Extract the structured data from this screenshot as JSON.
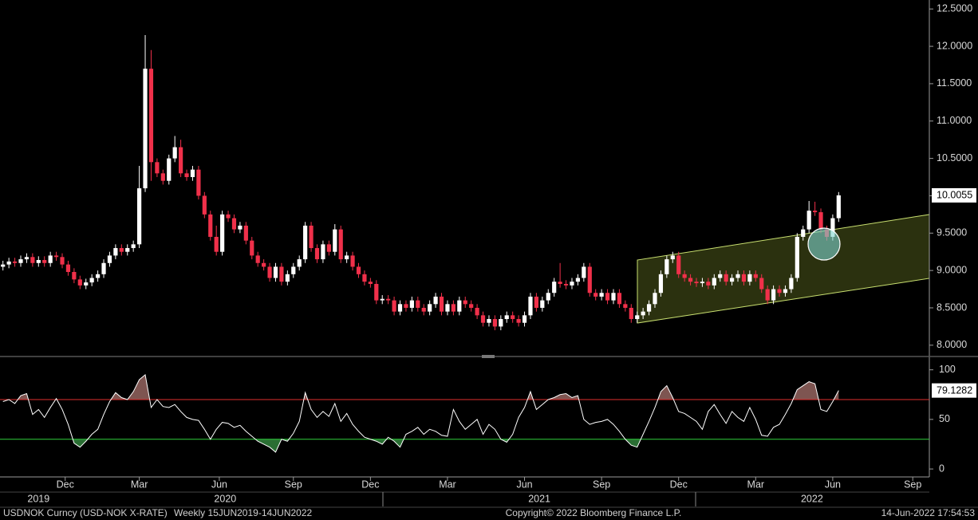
{
  "chart_data": [
    {
      "type": "candlestick",
      "categories": [
        null,
        null,
        null,
        null,
        null,
        null,
        null,
        null,
        null,
        null,
        null,
        null,
        null,
        null,
        null,
        null,
        null,
        null,
        null,
        null,
        null,
        null,
        null,
        null,
        null,
        null,
        null,
        null,
        null,
        null,
        null,
        null,
        null,
        null,
        null,
        null,
        null,
        null,
        null,
        null,
        null,
        null,
        null,
        null,
        null,
        null,
        null,
        null,
        null,
        null,
        null,
        null,
        null,
        null,
        null,
        null,
        null,
        null,
        null,
        null,
        null,
        null,
        null,
        null,
        null,
        null,
        null,
        null,
        null,
        null,
        null,
        null,
        null,
        null,
        null,
        null,
        null,
        null,
        null,
        null,
        null,
        null,
        null,
        null,
        null,
        null,
        null,
        null,
        null,
        null,
        null,
        null,
        null,
        null,
        null,
        null,
        null,
        null,
        null,
        null,
        null,
        null,
        null,
        null,
        null,
        null,
        null,
        null,
        null,
        null,
        null,
        null,
        null,
        null,
        null,
        null,
        null,
        null,
        null,
        null,
        null,
        null,
        null,
        null,
        null,
        null,
        null,
        null,
        null,
        null,
        null,
        null,
        null,
        null,
        null,
        null,
        null,
        null,
        null,
        null,
        null,
        null
      ],
      "open": [
        9.05,
        9.08,
        9.12,
        9.1,
        9.15,
        9.18,
        9.1,
        9.14,
        9.1,
        9.2,
        9.18,
        9.08,
        8.98,
        8.88,
        8.8,
        8.84,
        8.9,
        8.95,
        9.1,
        9.2,
        9.3,
        9.25,
        9.3,
        9.35,
        10.1,
        11.7,
        10.45,
        10.3,
        10.2,
        10.5,
        10.65,
        10.3,
        10.25,
        10.35,
        10.0,
        9.75,
        9.45,
        9.25,
        9.75,
        9.7,
        9.55,
        9.6,
        9.4,
        9.2,
        9.1,
        9.05,
        8.9,
        9.05,
        8.85,
        8.95,
        9.05,
        9.15,
        9.6,
        9.3,
        9.15,
        9.35,
        9.25,
        9.55,
        9.15,
        9.2,
        9.05,
        8.95,
        8.85,
        8.82,
        8.6,
        8.62,
        8.6,
        8.45,
        8.55,
        8.5,
        8.6,
        8.5,
        8.45,
        8.55,
        8.65,
        8.45,
        8.55,
        8.45,
        8.6,
        8.55,
        8.5,
        8.4,
        8.3,
        8.35,
        8.25,
        8.35,
        8.4,
        8.35,
        8.3,
        8.4,
        8.65,
        8.5,
        8.6,
        8.7,
        8.85,
        8.82,
        8.8,
        8.85,
        8.9,
        9.05,
        8.7,
        8.65,
        8.7,
        8.6,
        8.7,
        8.55,
        8.5,
        8.35,
        8.4,
        8.45,
        8.55,
        8.7,
        8.95,
        9.15,
        9.2,
        8.95,
        8.9,
        8.85,
        8.83,
        8.85,
        8.8,
        8.9,
        8.95,
        8.85,
        8.9,
        8.95,
        8.85,
        8.95,
        8.9,
        8.75,
        8.6,
        8.75,
        8.7,
        8.75,
        8.9,
        9.45,
        9.55,
        9.8,
        9.78,
        9.55,
        9.45,
        9.7
      ],
      "high": [
        9.13,
        9.17,
        9.17,
        9.2,
        9.23,
        9.23,
        9.19,
        9.19,
        9.25,
        9.25,
        9.23,
        9.13,
        9.03,
        8.93,
        8.89,
        8.95,
        9.0,
        9.15,
        9.25,
        9.35,
        9.35,
        9.35,
        9.4,
        10.4,
        12.15,
        11.95,
        10.5,
        10.35,
        10.55,
        10.8,
        10.75,
        10.35,
        10.4,
        10.4,
        10.05,
        9.8,
        9.6,
        9.8,
        9.8,
        9.75,
        9.65,
        9.65,
        9.45,
        9.25,
        9.15,
        9.1,
        9.1,
        9.1,
        9.0,
        9.1,
        9.2,
        9.65,
        9.65,
        9.35,
        9.4,
        9.4,
        9.62,
        9.6,
        9.25,
        9.25,
        9.1,
        9.0,
        8.9,
        8.87,
        8.67,
        8.67,
        8.65,
        8.6,
        8.6,
        8.65,
        8.65,
        8.55,
        8.6,
        8.7,
        8.7,
        8.6,
        8.6,
        8.65,
        8.65,
        8.6,
        8.55,
        8.45,
        8.4,
        8.4,
        8.4,
        8.45,
        8.45,
        8.4,
        8.45,
        8.7,
        8.7,
        8.65,
        8.75,
        8.9,
        9.1,
        8.87,
        8.9,
        8.95,
        9.1,
        9.1,
        8.75,
        8.75,
        8.75,
        8.75,
        8.75,
        8.6,
        8.55,
        8.45,
        8.5,
        8.6,
        8.75,
        9.0,
        9.2,
        9.25,
        9.25,
        9.0,
        8.95,
        8.9,
        8.9,
        8.9,
        8.95,
        9.0,
        9.0,
        8.95,
        9.0,
        9.0,
        9.0,
        9.0,
        8.95,
        8.8,
        8.8,
        8.8,
        8.8,
        8.95,
        9.5,
        9.6,
        9.93,
        9.92,
        9.83,
        9.6,
        9.75,
        10.05
      ],
      "low": [
        9.0,
        9.03,
        9.05,
        9.05,
        9.1,
        9.05,
        9.05,
        9.05,
        9.05,
        9.13,
        9.03,
        8.93,
        8.83,
        8.75,
        8.75,
        8.79,
        8.85,
        8.9,
        9.05,
        9.15,
        9.2,
        9.2,
        9.25,
        9.3,
        10.05,
        10.2,
        10.25,
        10.15,
        10.15,
        10.45,
        10.25,
        10.2,
        10.2,
        9.95,
        9.7,
        9.4,
        9.2,
        9.2,
        9.65,
        9.5,
        9.5,
        9.35,
        9.15,
        9.05,
        9.0,
        8.85,
        8.85,
        8.8,
        8.8,
        8.9,
        9.0,
        9.1,
        9.25,
        9.1,
        9.1,
        9.2,
        9.2,
        9.1,
        9.1,
        9.0,
        8.9,
        8.8,
        8.77,
        8.55,
        8.55,
        8.55,
        8.4,
        8.4,
        8.45,
        8.45,
        8.45,
        8.4,
        8.4,
        8.5,
        8.4,
        8.4,
        8.4,
        8.4,
        8.5,
        8.45,
        8.35,
        8.25,
        8.25,
        8.2,
        8.2,
        8.3,
        8.3,
        8.25,
        8.25,
        8.35,
        8.45,
        8.45,
        8.55,
        8.65,
        8.77,
        8.75,
        8.75,
        8.8,
        8.85,
        8.65,
        8.6,
        8.6,
        8.55,
        8.55,
        8.5,
        8.45,
        8.3,
        8.3,
        8.35,
        8.4,
        8.5,
        8.65,
        8.9,
        9.1,
        8.9,
        8.85,
        8.8,
        8.78,
        8.78,
        8.75,
        8.75,
        8.85,
        8.8,
        8.8,
        8.85,
        8.8,
        8.8,
        8.85,
        8.7,
        8.55,
        8.55,
        8.65,
        8.65,
        8.7,
        8.85,
        9.4,
        9.5,
        9.73,
        9.5,
        9.4,
        9.4,
        9.65
      ],
      "close": [
        9.08,
        9.12,
        9.1,
        9.15,
        9.18,
        9.1,
        9.14,
        9.1,
        9.2,
        9.18,
        9.08,
        8.98,
        8.88,
        8.8,
        8.84,
        8.9,
        8.95,
        9.1,
        9.2,
        9.3,
        9.25,
        9.3,
        9.35,
        10.1,
        11.7,
        10.45,
        10.3,
        10.2,
        10.5,
        10.65,
        10.3,
        10.25,
        10.35,
        10.0,
        9.75,
        9.45,
        9.25,
        9.75,
        9.7,
        9.55,
        9.6,
        9.4,
        9.2,
        9.1,
        9.05,
        8.9,
        9.05,
        8.85,
        8.95,
        9.05,
        9.15,
        9.6,
        9.3,
        9.15,
        9.35,
        9.25,
        9.55,
        9.15,
        9.2,
        9.05,
        8.95,
        8.85,
        8.82,
        8.6,
        8.62,
        8.6,
        8.45,
        8.55,
        8.5,
        8.6,
        8.5,
        8.45,
        8.55,
        8.65,
        8.45,
        8.55,
        8.45,
        8.6,
        8.55,
        8.5,
        8.4,
        8.3,
        8.35,
        8.25,
        8.35,
        8.4,
        8.35,
        8.3,
        8.4,
        8.65,
        8.5,
        8.6,
        8.7,
        8.85,
        8.82,
        8.8,
        8.85,
        8.9,
        9.05,
        8.7,
        8.65,
        8.7,
        8.6,
        8.7,
        8.55,
        8.5,
        8.35,
        8.4,
        8.45,
        8.55,
        8.7,
        8.95,
        9.15,
        9.2,
        8.95,
        8.9,
        8.85,
        8.83,
        8.85,
        8.8,
        8.9,
        8.95,
        8.85,
        8.9,
        8.95,
        8.85,
        8.95,
        8.9,
        8.75,
        8.6,
        8.75,
        8.7,
        8.75,
        8.9,
        9.45,
        9.55,
        9.8,
        9.78,
        9.55,
        9.45,
        9.7,
        10.0055
      ],
      "up_color": "#ffffff",
      "down_color": "#f0304a",
      "xlim": [
        -0.5,
        156.3
      ],
      "xticks": [
        {
          "value": 10.5,
          "label": "Dec"
        },
        {
          "value": 23,
          "label": "Mar"
        },
        {
          "value": 36.5,
          "label": "Jun"
        },
        {
          "value": 49,
          "label": "Sep"
        },
        {
          "value": 62,
          "label": "Dec"
        },
        {
          "value": 75,
          "label": "Mar"
        },
        {
          "value": 88,
          "label": "Jun"
        },
        {
          "value": 101,
          "label": "Sep"
        },
        {
          "value": 114,
          "label": "Dec"
        },
        {
          "value": 127,
          "label": "Mar"
        },
        {
          "value": 140,
          "label": "Jun"
        },
        {
          "value": 153.5,
          "label": "Sep"
        }
      ],
      "year_ticks": [
        {
          "value": 6,
          "label": "2019"
        },
        {
          "value": 37.5,
          "label": "2020"
        },
        {
          "value": 90.5,
          "label": "2021"
        },
        {
          "value": 136.5,
          "label": "2022"
        }
      ],
      "ylim": [
        7.87,
        12.62
      ],
      "yticks": [
        {
          "value": 8,
          "label": "8.0000"
        },
        {
          "value": 8.5,
          "label": "8.5000"
        },
        {
          "value": 9,
          "label": "9.0000"
        },
        {
          "value": 9.5,
          "label": "9.5000"
        },
        {
          "value": 10,
          "label": "10.0000"
        },
        {
          "value": 10.5,
          "label": "10.5000"
        },
        {
          "value": 11,
          "label": "11.0000"
        },
        {
          "value": 11.5,
          "label": "11.5000"
        },
        {
          "value": 12,
          "label": "12.0000"
        },
        {
          "value": 12.5,
          "label": "12.5000"
        }
      ]
    },
    {
      "type": "line",
      "values": [
        68,
        70,
        66,
        74,
        76,
        55,
        60,
        52,
        62,
        71,
        60,
        45,
        26,
        22,
        28,
        35,
        40,
        55,
        68,
        77,
        72,
        70,
        78,
        90,
        95,
        62,
        70,
        63,
        62,
        65,
        58,
        52,
        50,
        49,
        40,
        30,
        40,
        47,
        46,
        42,
        44,
        38,
        33,
        28,
        25,
        22,
        17,
        30,
        28,
        36,
        48,
        77,
        60,
        52,
        58,
        53,
        66,
        48,
        56,
        45,
        38,
        32,
        30,
        28,
        25,
        32,
        28,
        22,
        35,
        38,
        42,
        35,
        40,
        38,
        34,
        33,
        60,
        48,
        40,
        45,
        50,
        35,
        45,
        40,
        30,
        27,
        35,
        52,
        62,
        78,
        60,
        65,
        70,
        72,
        75,
        76,
        72,
        74,
        50,
        45,
        47,
        48,
        50,
        45,
        38,
        30,
        24,
        22,
        35,
        48,
        62,
        78,
        84,
        72,
        58,
        56,
        52,
        48,
        40,
        58,
        65,
        55,
        46,
        58,
        52,
        48,
        62,
        50,
        34,
        33,
        42,
        45,
        55,
        66,
        80,
        84,
        88,
        86,
        60,
        58,
        68,
        79.1282
      ],
      "color": "#ffffff",
      "levels": [
        {
          "value": 70,
          "color": "#e0302e",
          "fill": "#8c5e5a"
        },
        {
          "value": 30,
          "color": "#2fcf3c",
          "fill": "#2f7a38"
        }
      ],
      "ylim": [
        -8,
        111
      ],
      "yticks": [
        0,
        50,
        100
      ]
    }
  ],
  "footer": {
    "security": "USDNOK Curncy (USD-NOK X-RATE)",
    "period": "Weekly 15JUN2019-14JUN2022",
    "copyright": "Copyright© 2022 Bloomberg Finance L.P.",
    "timestamp": "14-Jun-2022 17:54:53"
  }
}
